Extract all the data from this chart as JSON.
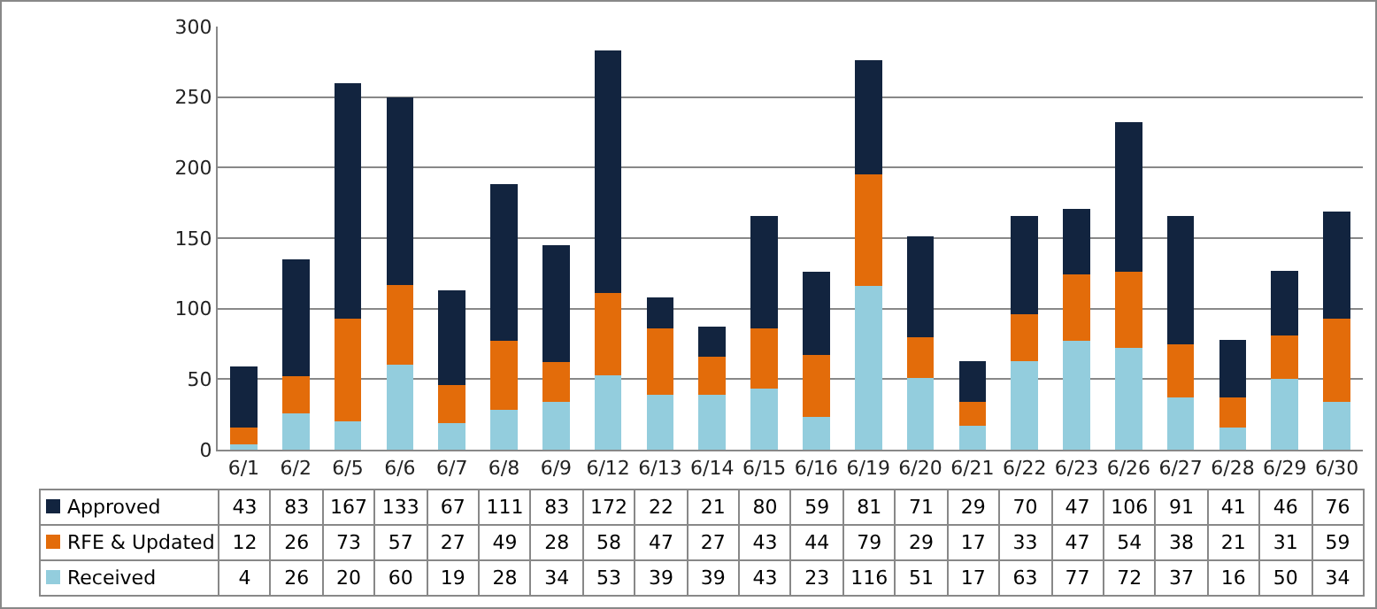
{
  "chart_data": {
    "type": "bar",
    "stacked": true,
    "categories": [
      "6/1",
      "6/2",
      "6/5",
      "6/6",
      "6/7",
      "6/8",
      "6/9",
      "6/12",
      "6/13",
      "6/14",
      "6/15",
      "6/16",
      "6/19",
      "6/20",
      "6/21",
      "6/22",
      "6/23",
      "6/26",
      "6/27",
      "6/28",
      "6/29",
      "6/30"
    ],
    "series": [
      {
        "name": "Received",
        "color": "#93cddd",
        "values": [
          4,
          26,
          20,
          60,
          19,
          28,
          34,
          53,
          39,
          39,
          43,
          23,
          116,
          51,
          17,
          63,
          77,
          72,
          37,
          16,
          50,
          34
        ]
      },
      {
        "name": "RFE & Updated",
        "color": "#e36c0a",
        "values": [
          12,
          26,
          73,
          57,
          27,
          49,
          28,
          58,
          47,
          27,
          43,
          44,
          79,
          29,
          17,
          33,
          47,
          54,
          38,
          21,
          31,
          59
        ]
      },
      {
        "name": "Approved",
        "color": "#12243f",
        "values": [
          43,
          83,
          167,
          133,
          67,
          111,
          83,
          172,
          22,
          21,
          80,
          59,
          81,
          71,
          29,
          70,
          47,
          106,
          91,
          41,
          46,
          76
        ]
      }
    ],
    "ylim": [
      0,
      300
    ],
    "yticks": [
      0,
      50,
      100,
      150,
      200,
      250,
      300
    ],
    "grid": "y",
    "data_labels": true,
    "legend": "bottom left"
  }
}
